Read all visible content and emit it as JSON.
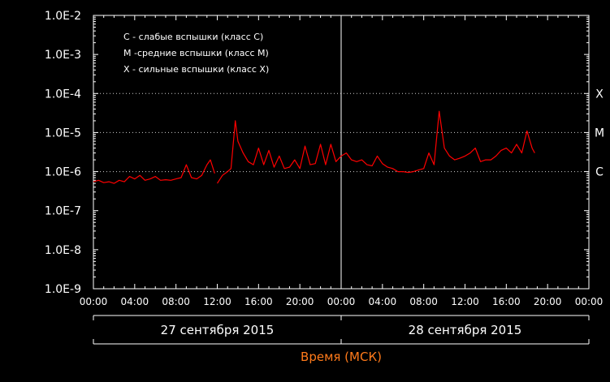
{
  "chart_data": {
    "type": "line",
    "y_scale": "log",
    "ylim": [
      1e-09,
      0.01
    ],
    "y_ticks": [
      {
        "value": 0.01,
        "label": "1.0E-2"
      },
      {
        "value": 0.001,
        "label": "1.0E-3"
      },
      {
        "value": 0.0001,
        "label": "1.0E-4"
      },
      {
        "value": 1e-05,
        "label": "1.0E-5"
      },
      {
        "value": 1e-06,
        "label": "1.0E-6"
      },
      {
        "value": 1e-07,
        "label": "1.0E-7"
      },
      {
        "value": 1e-08,
        "label": "1.0E-8"
      },
      {
        "value": 1e-09,
        "label": "1.0E-9"
      }
    ],
    "xlim": [
      "2015-09-27 00:00",
      "2015-09-29 00:00"
    ],
    "x_tick_labels": [
      "00:00",
      "04:00",
      "08:00",
      "12:00",
      "16:00",
      "20:00",
      "00:00",
      "04:00",
      "08:00",
      "12:00",
      "16:00",
      "20:00",
      "00:00"
    ],
    "date_labels": [
      "27 сентября 2015",
      "28 сентября 2015"
    ],
    "xlabel": "Время (МСК)",
    "class_levels": [
      {
        "label": "X",
        "value": 0.0001
      },
      {
        "label": "M",
        "value": 1e-05
      },
      {
        "label": "C",
        "value": 1e-06
      }
    ],
    "legend": [
      "C - слабые вспышки (класс C)",
      "M -средние вспышки (класс M)",
      "X - сильные вспышки (класс X)"
    ],
    "grid": "dotted horizontal lines at class levels",
    "series": [
      {
        "color": "#ff0000",
        "segments": [
          [
            [
              "2015-09-27 00:00",
              5.5e-07
            ],
            [
              "2015-09-27 00:30",
              6e-07
            ],
            [
              "2015-09-27 01:00",
              5.2e-07
            ],
            [
              "2015-09-27 01:30",
              5.5e-07
            ],
            [
              "2015-09-27 02:00",
              5e-07
            ],
            [
              "2015-09-27 02:30",
              6e-07
            ],
            [
              "2015-09-27 03:00",
              5.5e-07
            ],
            [
              "2015-09-27 03:30",
              7.5e-07
            ],
            [
              "2015-09-27 04:00",
              6.5e-07
            ],
            [
              "2015-09-27 04:30",
              8e-07
            ],
            [
              "2015-09-27 05:00",
              6e-07
            ],
            [
              "2015-09-27 05:30",
              6.5e-07
            ],
            [
              "2015-09-27 06:00",
              7.5e-07
            ],
            [
              "2015-09-27 06:30",
              6e-07
            ],
            [
              "2015-09-27 07:00",
              6.2e-07
            ],
            [
              "2015-09-27 07:30",
              6e-07
            ],
            [
              "2015-09-27 08:00",
              6.5e-07
            ],
            [
              "2015-09-27 08:30",
              7e-07
            ],
            [
              "2015-09-27 09:00",
              1.5e-06
            ],
            [
              "2015-09-27 09:30",
              7e-07
            ],
            [
              "2015-09-27 10:00",
              6.5e-07
            ],
            [
              "2015-09-27 10:30",
              8e-07
            ],
            [
              "2015-09-27 11:00",
              1.5e-06
            ],
            [
              "2015-09-27 11:20",
              2e-06
            ],
            [
              "2015-09-27 11:45",
              9e-07
            ]
          ],
          [
            [
              "2015-09-27 12:00",
              5e-07
            ],
            [
              "2015-09-27 12:30",
              8e-07
            ],
            [
              "2015-09-27 13:00",
              1e-06
            ],
            [
              "2015-09-27 13:20",
              1.2e-06
            ],
            [
              "2015-09-27 13:45",
              2e-05
            ],
            [
              "2015-09-27 14:00",
              6e-06
            ],
            [
              "2015-09-27 14:30",
              3e-06
            ],
            [
              "2015-09-27 15:00",
              1.8e-06
            ],
            [
              "2015-09-27 15:30",
              1.5e-06
            ],
            [
              "2015-09-27 16:00",
              4e-06
            ],
            [
              "2015-09-27 16:30",
              1.5e-06
            ],
            [
              "2015-09-27 17:00",
              3.5e-06
            ],
            [
              "2015-09-27 17:30",
              1.3e-06
            ],
            [
              "2015-09-27 18:00",
              2.5e-06
            ],
            [
              "2015-09-27 18:30",
              1.2e-06
            ],
            [
              "2015-09-27 19:00",
              1.3e-06
            ],
            [
              "2015-09-27 19:30",
              2e-06
            ],
            [
              "2015-09-27 20:00",
              1.2e-06
            ],
            [
              "2015-09-27 20:30",
              4.5e-06
            ],
            [
              "2015-09-27 21:00",
              1.5e-06
            ],
            [
              "2015-09-27 21:30",
              1.6e-06
            ],
            [
              "2015-09-27 22:00",
              5e-06
            ],
            [
              "2015-09-27 22:30",
              1.5e-06
            ],
            [
              "2015-09-27 23:00",
              5e-06
            ],
            [
              "2015-09-27 23:30",
              1.8e-06
            ],
            [
              "2015-09-28 00:00",
              2.5e-06
            ],
            [
              "2015-09-28 00:30",
              3e-06
            ],
            [
              "2015-09-28 01:00",
              2e-06
            ],
            [
              "2015-09-28 01:30",
              1.8e-06
            ],
            [
              "2015-09-28 02:00",
              2e-06
            ],
            [
              "2015-09-28 02:30",
              1.5e-06
            ],
            [
              "2015-09-28 03:00",
              1.4e-06
            ],
            [
              "2015-09-28 03:30",
              2.5e-06
            ],
            [
              "2015-09-28 04:00",
              1.6e-06
            ],
            [
              "2015-09-28 04:30",
              1.3e-06
            ],
            [
              "2015-09-28 05:00",
              1.2e-06
            ],
            [
              "2015-09-28 05:30",
              1e-06
            ],
            [
              "2015-09-28 06:00",
              1e-06
            ],
            [
              "2015-09-28 06:30",
              9.5e-07
            ],
            [
              "2015-09-28 07:00",
              1e-06
            ],
            [
              "2015-09-28 07:30",
              1.1e-06
            ],
            [
              "2015-09-28 08:00",
              1.2e-06
            ],
            [
              "2015-09-28 08:30",
              3e-06
            ],
            [
              "2015-09-28 09:00",
              1.5e-06
            ],
            [
              "2015-09-28 09:30",
              3.5e-05
            ],
            [
              "2015-09-28 10:00",
              4e-06
            ],
            [
              "2015-09-28 10:30",
              2.5e-06
            ],
            [
              "2015-09-28 11:00",
              2e-06
            ],
            [
              "2015-09-28 11:30",
              2.2e-06
            ],
            [
              "2015-09-28 12:00",
              2.5e-06
            ],
            [
              "2015-09-28 12:30",
              3e-06
            ],
            [
              "2015-09-28 13:00",
              4e-06
            ],
            [
              "2015-09-28 13:30",
              1.8e-06
            ],
            [
              "2015-09-28 14:00",
              2e-06
            ],
            [
              "2015-09-28 14:30",
              2e-06
            ],
            [
              "2015-09-28 15:00",
              2.5e-06
            ],
            [
              "2015-09-28 15:30",
              3.5e-06
            ],
            [
              "2015-09-28 16:00",
              4e-06
            ],
            [
              "2015-09-28 16:30",
              3e-06
            ],
            [
              "2015-09-28 17:00",
              5e-06
            ],
            [
              "2015-09-28 17:30",
              3e-06
            ],
            [
              "2015-09-28 18:00",
              1.1e-05
            ],
            [
              "2015-09-28 18:30",
              4e-06
            ],
            [
              "2015-09-28 18:45",
              3e-06
            ]
          ]
        ]
      }
    ]
  }
}
